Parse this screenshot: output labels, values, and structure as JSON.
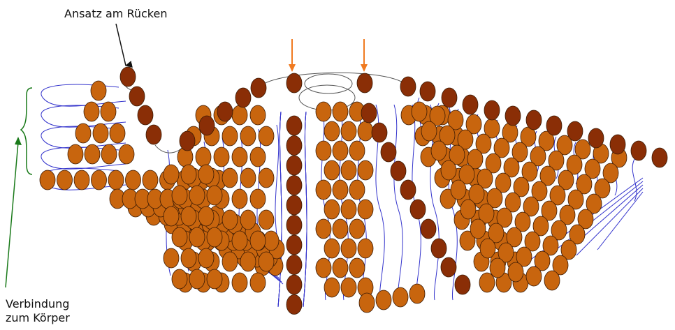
{
  "labels": {
    "top": "Ansatz am Rücken",
    "bottom_line1": "Verbindung",
    "bottom_line2": "zum Körper"
  },
  "colors": {
    "bead_light": "#c8650e",
    "bead_dark": "#8a2e06",
    "bead_outline": "#3a1a05",
    "thread": "#3333cc",
    "arrow_black": "#111111",
    "arrow_orange": "#f07a20",
    "arrow_green": "#1a7a1a",
    "outline_thread": "#555555"
  }
}
